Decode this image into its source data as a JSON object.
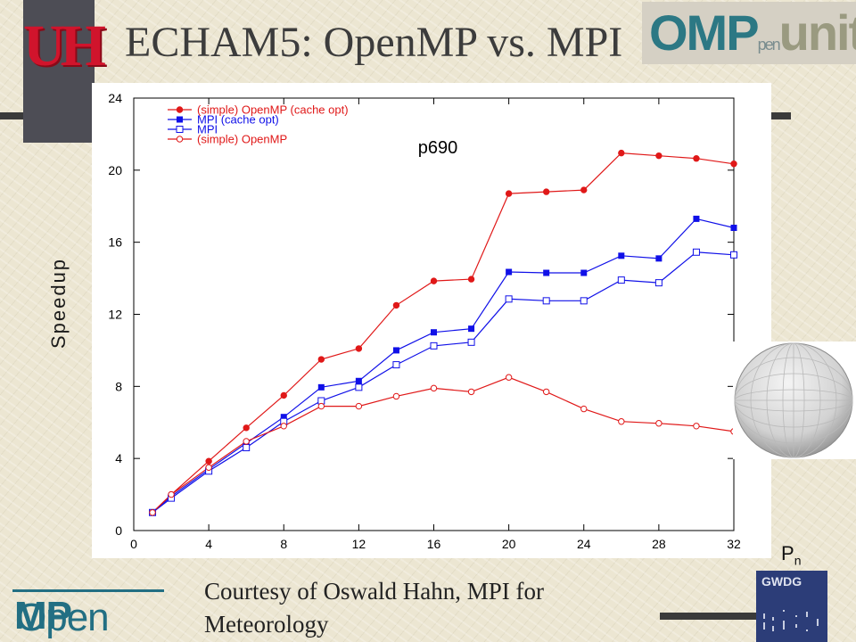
{
  "slide": {
    "title": "ECHAM5: OpenMP vs. MPI",
    "logo_uh": "UH",
    "logo_community": {
      "main": "OMP",
      "small": "pen",
      "tail": "unity"
    },
    "logo_openmp": {
      "light": "Open",
      "bold": "MP"
    },
    "logo_gwdg": "GWDG",
    "credit": "Courtesy of Oswald Hahn, MPI for Meteorology",
    "pn_label": {
      "base": "P",
      "sub": "n"
    },
    "colors": {
      "red": "#e01818",
      "blue": "#1010e8",
      "accent_teal": "#2c7884",
      "uh_red": "#d0142c"
    }
  },
  "chart_data": {
    "type": "line",
    "title": "",
    "annotation": "p690",
    "xlabel": "",
    "ylabel": "Speedup",
    "xlim": [
      0,
      32
    ],
    "ylim": [
      0,
      24
    ],
    "xticks": [
      0,
      4,
      8,
      12,
      16,
      20,
      24,
      28,
      32
    ],
    "yticks": [
      0,
      4,
      8,
      12,
      16,
      20,
      24
    ],
    "grid": false,
    "legend_position": "top-left",
    "x": [
      1,
      2,
      4,
      6,
      8,
      10,
      12,
      14,
      16,
      18,
      20,
      22,
      24,
      26,
      28,
      30,
      32
    ],
    "series": [
      {
        "name": "(simple) OpenMP (cache opt)",
        "color": "#e01818",
        "marker": "circle-filled",
        "values": [
          1.0,
          2.0,
          3.85,
          5.7,
          7.5,
          9.5,
          10.1,
          12.5,
          13.85,
          13.95,
          18.7,
          18.8,
          18.9,
          20.95,
          20.8,
          20.65,
          20.35
        ]
      },
      {
        "name": "MPI (cache opt)",
        "color": "#1010e8",
        "marker": "square-filled",
        "values": [
          1.0,
          1.9,
          3.4,
          4.85,
          6.3,
          7.95,
          8.3,
          10.0,
          11.0,
          11.2,
          14.35,
          14.3,
          14.3,
          15.25,
          15.1,
          17.3,
          16.8
        ]
      },
      {
        "name": "MPI",
        "color": "#1010e8",
        "marker": "square-open",
        "values": [
          1.0,
          1.8,
          3.3,
          4.6,
          6.05,
          7.2,
          7.95,
          9.2,
          10.25,
          10.45,
          12.85,
          12.75,
          12.75,
          13.9,
          13.75,
          15.45,
          15.3
        ]
      },
      {
        "name": "(simple) OpenMP",
        "color": "#e01818",
        "marker": "circle-open",
        "values": [
          1.0,
          2.0,
          3.5,
          4.95,
          5.8,
          6.9,
          6.9,
          7.45,
          7.9,
          7.7,
          8.5,
          7.7,
          6.75,
          6.05,
          5.95,
          5.8,
          5.5
        ]
      }
    ]
  }
}
